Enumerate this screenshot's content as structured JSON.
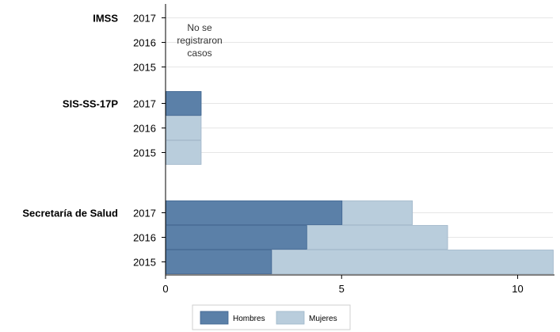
{
  "chart_data": {
    "type": "bar",
    "orientation": "horizontal",
    "stacking": "overlay",
    "groups": [
      {
        "name": "IMSS",
        "years": [
          "2017",
          "2016",
          "2015"
        ],
        "series": [
          {
            "name": "Hombres",
            "values": [
              0,
              0,
              0
            ]
          },
          {
            "name": "Mujeres",
            "values": [
              0,
              0,
              0
            ]
          }
        ],
        "note": [
          "No se",
          "registraron",
          "casos"
        ]
      },
      {
        "name": "SIS-SS-17P",
        "years": [
          "2017",
          "2016",
          "2015"
        ],
        "series": [
          {
            "name": "Hombres",
            "values": [
              1,
              0,
              0
            ]
          },
          {
            "name": "Mujeres",
            "values": [
              1,
              1,
              1
            ]
          }
        ]
      },
      {
        "name": "Secretaría de Salud",
        "years": [
          "2017",
          "2016",
          "2015"
        ],
        "series": [
          {
            "name": "Hombres",
            "values": [
              5,
              4,
              3
            ]
          },
          {
            "name": "Mujeres",
            "values": [
              7,
              8,
              11
            ]
          }
        ]
      }
    ],
    "x_ticks": [
      "0",
      "5",
      "10"
    ],
    "xlim": [
      0,
      11
    ],
    "legend": {
      "position": "bottom",
      "items": [
        "Hombres",
        "Mujeres"
      ]
    },
    "grid": true,
    "colors": {
      "Hombres": "#5b80a8",
      "Mujeres": "#b9cddc"
    }
  }
}
